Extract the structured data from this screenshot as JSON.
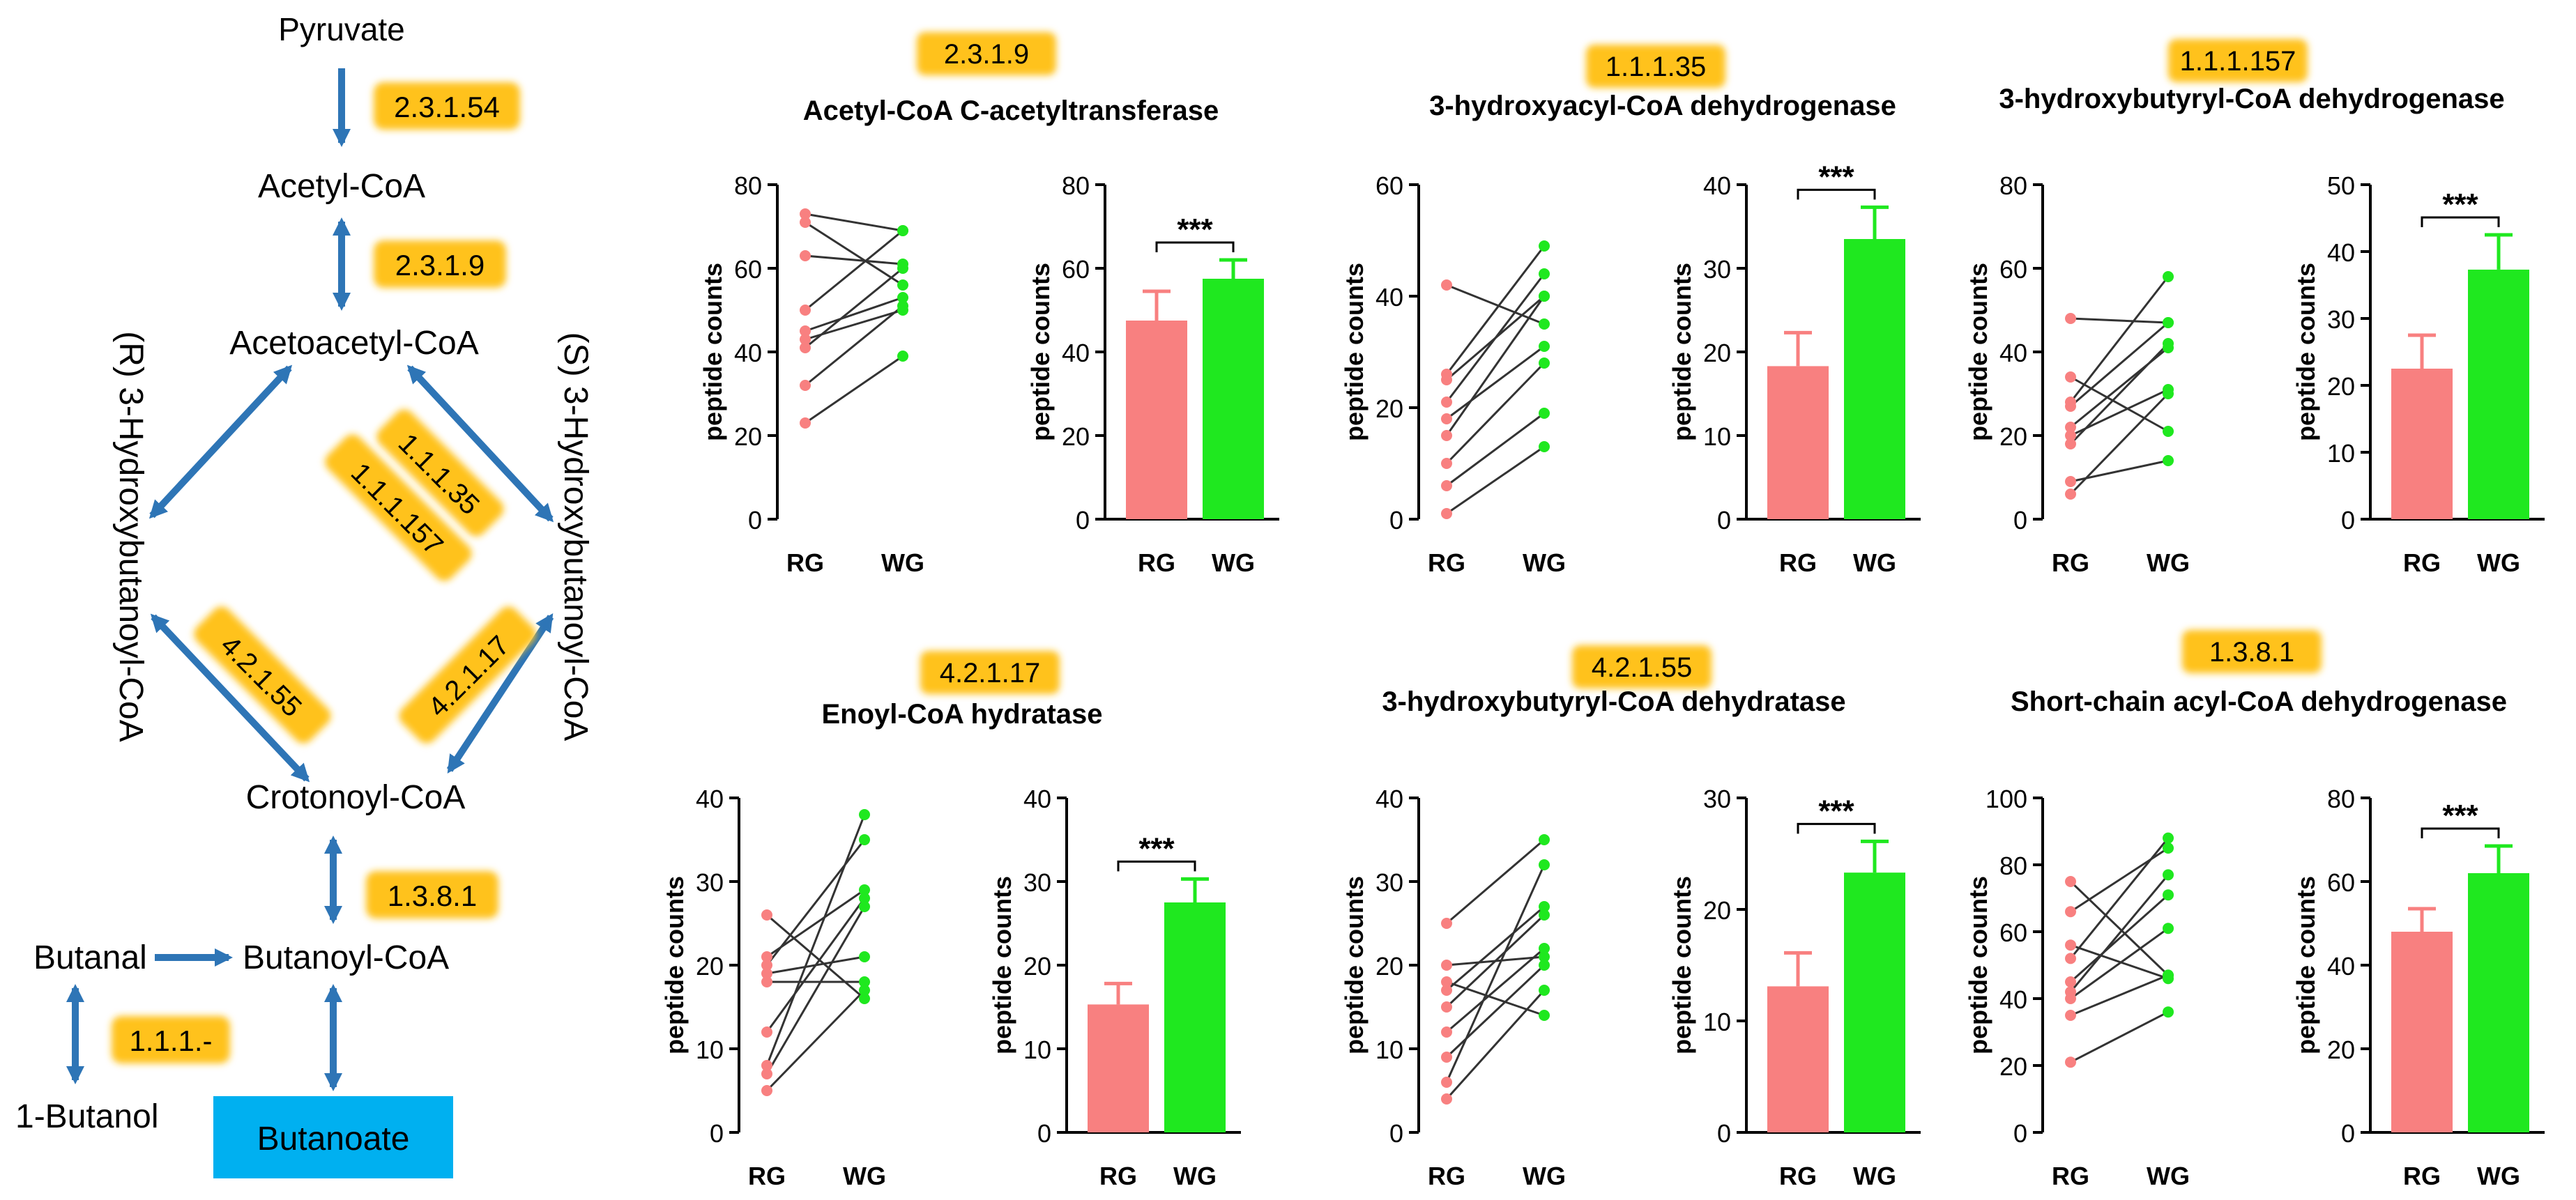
{
  "colors": {
    "rg": "#F88080",
    "wg": "#1FE81F",
    "ec_badge": "#FFC21A",
    "butanoate_box": "#00B0F0",
    "arrow": "#2E75B6",
    "line": "#333333"
  },
  "pathway": {
    "compounds": {
      "pyruvate": "Pyruvate",
      "acetyl_coa": "Acetyl-CoA",
      "acetoacetyl_coa": "Acetoacetyl-CoA",
      "r_hydroxy": "(R) 3-Hydroxybutanoyl-CoA",
      "s_hydroxy": "(S) 3-Hydroxybutanoyl-CoA",
      "crotonoyl_coa": "Crotonoyl-CoA",
      "butanal": "Butanal",
      "butanoyl_coa": "Butanoyl-CoA",
      "butanol": "1-Butanol",
      "butanoate": "Butanoate"
    },
    "ec": {
      "e2_3_1_54": "2.3.1.54",
      "e2_3_1_9": "2.3.1.9",
      "e1_1_1_35": "1.1.1.35",
      "e1_1_1_157": "1.1.1.157",
      "e4_2_1_55": "4.2.1.55",
      "e4_2_1_17": "4.2.1.17",
      "e1_3_8_1": "1.3.8.1",
      "e1_1_1_dash": "1.1.1.-"
    }
  },
  "chart_data": [
    {
      "type": "paired-dot-and-bar",
      "ec": "2.3.1.9",
      "title": "Acetyl-CoA C-acetyltransferase",
      "ylabel": "peptide counts",
      "categories": [
        "RG",
        "WG"
      ],
      "paired": {
        "ylim": [
          0,
          80
        ],
        "ticks": [
          0,
          20,
          40,
          60,
          80
        ],
        "pairs": [
          [
            73,
            69
          ],
          [
            71,
            56
          ],
          [
            63,
            61
          ],
          [
            50,
            69
          ],
          [
            45,
            53
          ],
          [
            43,
            50
          ],
          [
            41,
            60
          ],
          [
            32,
            51
          ],
          [
            23,
            39
          ]
        ]
      },
      "bar": {
        "ylim": [
          0,
          80
        ],
        "ticks": [
          0,
          20,
          40,
          60,
          80
        ],
        "values": [
          47.5,
          57.5
        ],
        "errors": [
          7,
          4.5
        ],
        "significance": "***"
      }
    },
    {
      "type": "paired-dot-and-bar",
      "ec": "1.1.1.35",
      "title": "3-hydroxyacyl-CoA dehydrogenase",
      "ylabel": "peptide counts",
      "categories": [
        "RG",
        "WG"
      ],
      "paired": {
        "ylim": [
          0,
          60
        ],
        "ticks": [
          0,
          20,
          40,
          60
        ],
        "pairs": [
          [
            42,
            35
          ],
          [
            26,
            49
          ],
          [
            25,
            40
          ],
          [
            21,
            44
          ],
          [
            18,
            31
          ],
          [
            15,
            40
          ],
          [
            10,
            28
          ],
          [
            6,
            19
          ],
          [
            1,
            13
          ]
        ]
      },
      "bar": {
        "ylim": [
          0,
          40
        ],
        "ticks": [
          0,
          10,
          20,
          30,
          40
        ],
        "values": [
          18.3,
          33.5
        ],
        "errors": [
          4,
          3.8
        ],
        "significance": "***"
      }
    },
    {
      "type": "paired-dot-and-bar",
      "ec": "1.1.1.157",
      "title": "3-hydroxybutyryl-CoA dehydrogenase",
      "ylabel": "peptide counts",
      "categories": [
        "RG",
        "WG"
      ],
      "paired": {
        "ylim": [
          0,
          80
        ],
        "ticks": [
          0,
          20,
          40,
          60,
          80
        ],
        "pairs": [
          [
            48,
            47
          ],
          [
            34,
            21
          ],
          [
            28,
            58
          ],
          [
            27,
            47
          ],
          [
            22,
            41
          ],
          [
            20,
            31
          ],
          [
            18,
            42
          ],
          [
            9,
            14
          ],
          [
            6,
            30
          ]
        ]
      },
      "bar": {
        "ylim": [
          0,
          50
        ],
        "ticks": [
          0,
          10,
          20,
          30,
          40,
          50
        ],
        "values": [
          22.5,
          37.3
        ],
        "errors": [
          5,
          5.2
        ],
        "significance": "***"
      }
    },
    {
      "type": "paired-dot-and-bar",
      "ec": "4.2.1.17",
      "title": "Enoyl-CoA hydratase",
      "ylabel": "peptide counts",
      "categories": [
        "RG",
        "WG"
      ],
      "paired": {
        "ylim": [
          0,
          40
        ],
        "ticks": [
          0,
          10,
          20,
          30,
          40
        ],
        "pairs": [
          [
            26,
            16
          ],
          [
            21,
            29
          ],
          [
            20,
            35
          ],
          [
            19,
            21
          ],
          [
            18,
            18
          ],
          [
            12,
            28
          ],
          [
            8,
            38
          ],
          [
            7,
            27
          ],
          [
            5,
            17
          ]
        ]
      },
      "bar": {
        "ylim": [
          0,
          40
        ],
        "ticks": [
          0,
          10,
          20,
          30,
          40
        ],
        "values": [
          15.3,
          27.5
        ],
        "errors": [
          2.5,
          2.8
        ],
        "significance": "***"
      }
    },
    {
      "type": "paired-dot-and-bar",
      "ec": "4.2.1.55",
      "title": "3-hydroxybutyryl-CoA dehydratase",
      "ylabel": "peptide counts",
      "categories": [
        "RG",
        "WG"
      ],
      "paired": {
        "ylim": [
          0,
          40
        ],
        "ticks": [
          0,
          10,
          20,
          30,
          40
        ],
        "pairs": [
          [
            25,
            35
          ],
          [
            20,
            21
          ],
          [
            18,
            14
          ],
          [
            17,
            27
          ],
          [
            15,
            26
          ],
          [
            12,
            22
          ],
          [
            9,
            20
          ],
          [
            6,
            32
          ],
          [
            4,
            17
          ]
        ]
      },
      "bar": {
        "ylim": [
          0,
          30
        ],
        "ticks": [
          0,
          10,
          20,
          30
        ],
        "values": [
          13.1,
          23.3
        ],
        "errors": [
          3,
          2.8
        ],
        "significance": "***"
      }
    },
    {
      "type": "paired-dot-and-bar",
      "ec": "1.3.8.1",
      "title": "Short-chain acyl-CoA dehydrogenase",
      "ylabel": "peptide counts",
      "categories": [
        "RG",
        "WG"
      ],
      "paired": {
        "ylim": [
          0,
          100
        ],
        "ticks": [
          0,
          20,
          40,
          60,
          80,
          100
        ],
        "pairs": [
          [
            75,
            47
          ],
          [
            66,
            85
          ],
          [
            56,
            46
          ],
          [
            52,
            88
          ],
          [
            45,
            71
          ],
          [
            42,
            77
          ],
          [
            40,
            61
          ],
          [
            35,
            47
          ],
          [
            21,
            36
          ]
        ]
      },
      "bar": {
        "ylim": [
          0,
          80
        ],
        "ticks": [
          0,
          20,
          40,
          60,
          80
        ],
        "values": [
          48,
          62
        ],
        "errors": [
          5.5,
          6.5
        ],
        "significance": "***"
      }
    }
  ]
}
